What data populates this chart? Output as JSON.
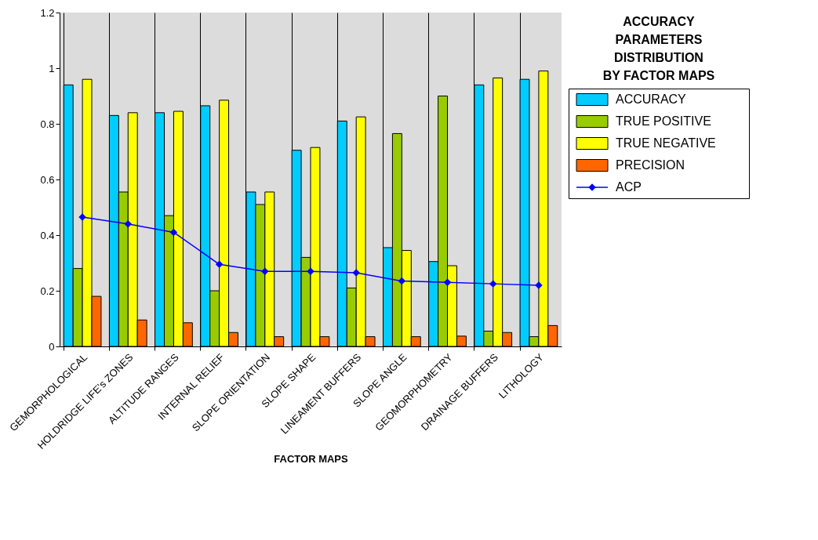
{
  "chart_data": {
    "type": "bar",
    "xlabel": "FACTOR MAPS",
    "legend_title": "ACCURACY PARAMETERS DISTRIBUTION BY FACTOR MAPS",
    "categories": [
      "GEMORPHOLOGICAL",
      "HOLDRIDGE LIFE's ZONES",
      "ALTITUDE RANGES",
      "INTERNAL RELIEF",
      "SLOPE ORIENTATION",
      "SLOPE SHAPE",
      "LINEAMENT BUFFERS",
      "SLOPE ANGLE",
      "GEOMORPHOMETRY",
      "DRAINAGE BUFFERS",
      "LITHOLOGY"
    ],
    "series": [
      {
        "name": "ACCURACY",
        "color": "#00ccff",
        "values": [
          0.94,
          0.83,
          0.84,
          0.865,
          0.555,
          0.705,
          0.81,
          0.355,
          0.305,
          0.94,
          0.96
        ]
      },
      {
        "name": "TRUE POSITIVE",
        "color": "#99cc00",
        "values": [
          0.28,
          0.555,
          0.47,
          0.2,
          0.51,
          0.32,
          0.21,
          0.765,
          0.9,
          0.055,
          0.035
        ]
      },
      {
        "name": "TRUE NEGATIVE",
        "color": "#ffff00",
        "values": [
          0.96,
          0.84,
          0.845,
          0.885,
          0.555,
          0.715,
          0.825,
          0.345,
          0.29,
          0.965,
          0.99
        ]
      },
      {
        "name": "PRECISION",
        "color": "#ff6600",
        "values": [
          0.18,
          0.095,
          0.085,
          0.05,
          0.035,
          0.035,
          0.035,
          0.035,
          0.037,
          0.05,
          0.075
        ]
      },
      {
        "name": "ACP",
        "type": "line",
        "color": "#0000ff",
        "marker": "diamond",
        "values": [
          0.465,
          0.44,
          0.41,
          0.295,
          0.27,
          0.27,
          0.265,
          0.235,
          0.23,
          0.225,
          0.22
        ]
      }
    ],
    "ylim": [
      0,
      1.2
    ],
    "yticks": [
      0,
      0.2,
      0.4,
      0.6,
      0.8,
      1,
      1.2
    ],
    "grid": "x",
    "legend": "right"
  }
}
